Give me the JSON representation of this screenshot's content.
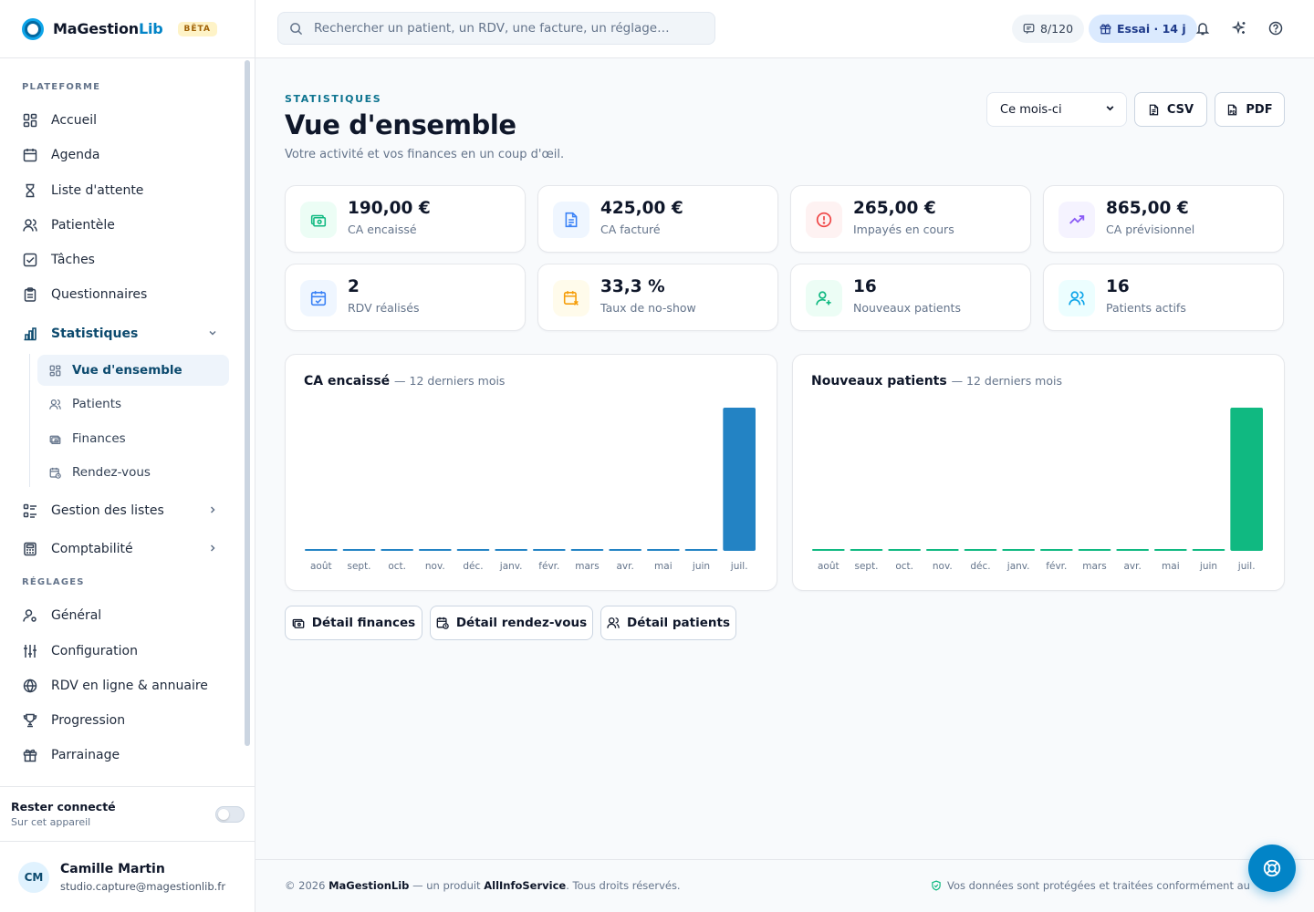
{
  "brand": {
    "name_part1": "MaGestion",
    "name_part2": "Lib",
    "badge": "BÊTA"
  },
  "search": {
    "placeholder": "Rechercher un patient, un RDV, une facture, un réglage…"
  },
  "topbar": {
    "quota": "8/120",
    "trial": "Essai · 14 j"
  },
  "sidebar": {
    "section_platform": "PLATEFORME",
    "items": [
      {
        "label": "Accueil",
        "icon": "grid-icon"
      },
      {
        "label": "Agenda",
        "icon": "calendar-icon"
      },
      {
        "label": "Liste d'attente",
        "icon": "hourglass-icon"
      },
      {
        "label": "Patientèle",
        "icon": "users-icon"
      },
      {
        "label": "Tâches",
        "icon": "checkbox-icon"
      },
      {
        "label": "Questionnaires",
        "icon": "clipboard-icon"
      }
    ],
    "stats_label": "Statistiques",
    "stats_sub": [
      {
        "label": "Vue d'ensemble",
        "icon": "grid-icon"
      },
      {
        "label": "Patients",
        "icon": "users-icon"
      },
      {
        "label": "Finances",
        "icon": "money-icon"
      },
      {
        "label": "Rendez-vous",
        "icon": "calendar-clock-icon"
      }
    ],
    "lists_label": "Gestion des listes",
    "accounting_label": "Comptabilité",
    "section_settings": "RÉGLAGES",
    "settings_items": [
      {
        "label": "Général",
        "icon": "user-cog-icon"
      },
      {
        "label": "Configuration",
        "icon": "sliders-icon"
      },
      {
        "label": "RDV en ligne & annuaire",
        "icon": "globe-icon"
      },
      {
        "label": "Progression",
        "icon": "trophy-icon"
      },
      {
        "label": "Parrainage",
        "icon": "gift-icon"
      }
    ],
    "stay_title": "Rester connecté",
    "stay_sub": "Sur cet appareil",
    "stay_enabled": false,
    "user": {
      "initials": "CM",
      "name": "Camille Martin",
      "email": "studio.capture@magestionlib.fr"
    }
  },
  "page": {
    "kicker": "STATISTIQUES",
    "title": "Vue d'ensemble",
    "subtitle": "Votre activité et vos finances en un coup d'œil.",
    "period": "Ce mois-ci",
    "csv": "CSV",
    "pdf": "PDF"
  },
  "kpis": [
    {
      "value": "190,00 €",
      "label": "CA encaissé",
      "icon": "money-icon",
      "color": "#10b981",
      "bg": "#ecfdf5"
    },
    {
      "value": "425,00 €",
      "label": "CA facturé",
      "icon": "file-icon",
      "color": "#3b82f6",
      "bg": "#eff6ff"
    },
    {
      "value": "265,00 €",
      "label": "Impayés en cours",
      "icon": "alert-icon",
      "color": "#ef4444",
      "bg": "#fef2f2"
    },
    {
      "value": "865,00 €",
      "label": "CA prévisionnel",
      "icon": "trend-icon",
      "color": "#8b5cf6",
      "bg": "#f5f3ff"
    },
    {
      "value": "2",
      "label": "RDV réalisés",
      "icon": "calendar-check-icon",
      "color": "#3b82f6",
      "bg": "#eff6ff"
    },
    {
      "value": "33,3 %",
      "label": "Taux de no-show",
      "icon": "calendar-x-icon",
      "color": "#f59e0b",
      "bg": "#fffbeb"
    },
    {
      "value": "16",
      "label": "Nouveaux patients",
      "icon": "user-plus-icon",
      "color": "#10b981",
      "bg": "#ecfdf5"
    },
    {
      "value": "16",
      "label": "Patients actifs",
      "icon": "users-icon",
      "color": "#0ea5e9",
      "bg": "#ecfeff"
    }
  ],
  "chart_data": [
    {
      "type": "bar",
      "title": "CA encaissé",
      "subtitle": "— 12 derniers mois",
      "categories": [
        "août",
        "sept.",
        "oct.",
        "nov.",
        "déc.",
        "janv.",
        "févr.",
        "mars",
        "avr.",
        "mai",
        "juin",
        "juil."
      ],
      "values": [
        0,
        0,
        0,
        0,
        0,
        0,
        0,
        0,
        0,
        0,
        0,
        190
      ],
      "color": "#2383c4"
    },
    {
      "type": "bar",
      "title": "Nouveaux patients",
      "subtitle": "— 12 derniers mois",
      "categories": [
        "août",
        "sept.",
        "oct.",
        "nov.",
        "déc.",
        "janv.",
        "févr.",
        "mars",
        "avr.",
        "mai",
        "juin",
        "juil."
      ],
      "values": [
        0,
        0,
        0,
        0,
        0,
        0,
        0,
        0,
        0,
        0,
        0,
        16
      ],
      "color": "#10b981"
    }
  ],
  "details": {
    "finances": "Détail finances",
    "rdv": "Détail rendez-vous",
    "patients": "Détail patients"
  },
  "footer": {
    "copyright": "© 2026",
    "brand": "MaGestionLib",
    "middle": " — un produit ",
    "company": "AllInfoService",
    "rights": ". Tous droits réservés.",
    "privacy": "Vos données sont protégées et traitées conformément au"
  }
}
